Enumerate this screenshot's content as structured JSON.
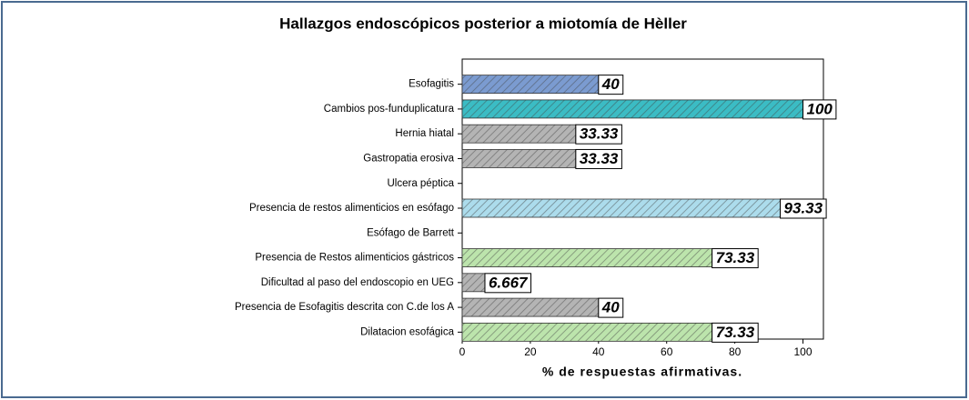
{
  "chart_data": {
    "type": "barh",
    "title": "Hallazgos endoscópicos posterior a miotomía de Hèller",
    "xlabel": "% de respuestas afirmativas.",
    "categories": [
      "Esofagitis",
      "Cambios pos-funduplicatura",
      "Hernia hiatal",
      "Gastropatia erosiva",
      "Ulcera péptica",
      "Presencia de restos alimenticios en esófago",
      "Esófago de Barrett",
      "Presencia de Restos alimenticios gástricos",
      "Dificultad al paso del endoscopio en UEG",
      "Presencia de  Esofagitis descrita con C.de los A",
      "Dilatacion esofágica"
    ],
    "values": [
      40,
      100,
      33.33,
      33.33,
      null,
      93.33,
      null,
      73.33,
      6.667,
      40,
      73.33
    ],
    "colors": [
      "#7b9bd0",
      "#3bbcc4",
      "#b4b4b4",
      "#b4b4b4",
      "#b4b4b4",
      "#acdcec",
      "#b4b4b4",
      "#bce4ac",
      "#b4b4b4",
      "#b4b4b4",
      "#bce4ac"
    ],
    "xlim": [
      0,
      106
    ],
    "xticks": [
      0,
      20,
      40,
      60,
      80,
      100
    ],
    "hatch": true
  }
}
